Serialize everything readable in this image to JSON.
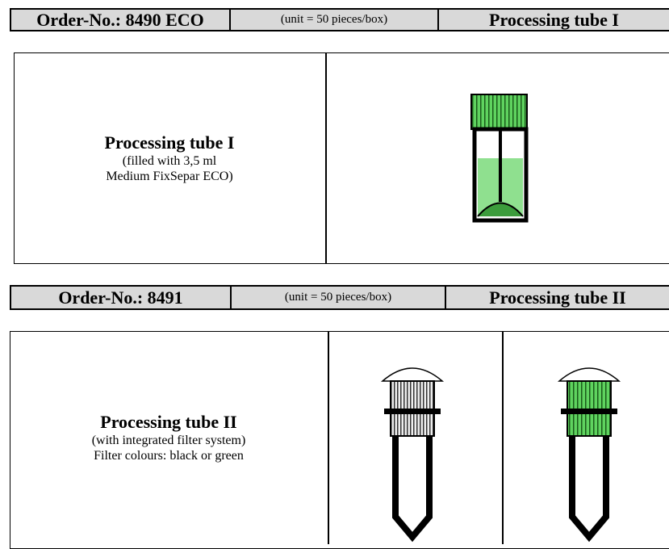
{
  "sections": [
    {
      "header": {
        "order": "Order-No.: 8490 ECO",
        "unit": "(unit = 50 pieces/box)",
        "name": "Processing tube I"
      },
      "description": {
        "title": "Processing tube I",
        "lines": [
          "(filled with 3,5 ml",
          "Medium FixSepar ECO)"
        ]
      }
    },
    {
      "header": {
        "order": "Order-No.: 8491",
        "unit": "(unit = 50 pieces/box)",
        "name": "Processing tube II"
      },
      "description": {
        "title": "Processing tube II",
        "lines": [
          "(with integrated filter system)",
          "Filter colours: black or green"
        ]
      }
    }
  ]
}
